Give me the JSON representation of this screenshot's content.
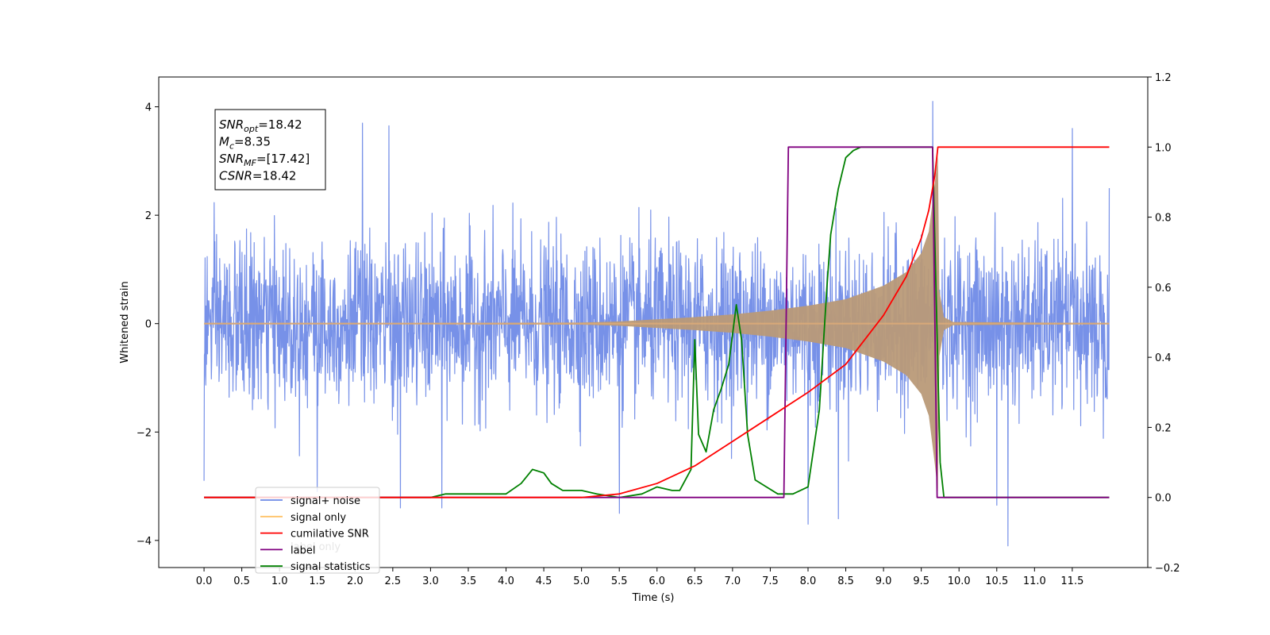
{
  "chart_data": {
    "type": "line",
    "xlabel": "Time (s)",
    "ylabel": "Whitened strain",
    "xlim": [
      -0.6,
      12.5
    ],
    "ylim": [
      -4.5,
      4.55
    ],
    "y2lim": [
      -0.2,
      1.2
    ],
    "x_ticks": [
      0.0,
      0.5,
      1.0,
      1.5,
      2.0,
      2.5,
      3.0,
      3.5,
      4.0,
      4.5,
      5.0,
      5.5,
      6.0,
      6.5,
      7.0,
      7.5,
      8.0,
      8.5,
      9.0,
      9.5,
      10.0,
      10.5,
      11.0,
      11.5
    ],
    "x_tick_labels": [
      "0.0",
      "0.5",
      "1.0",
      "1.5",
      "2.0",
      "2.5",
      "3.0",
      "3.5",
      "4.0",
      "4.5",
      "5.0",
      "5.5",
      "6.0",
      "6.5",
      "7.0",
      "7.5",
      "8.0",
      "8.5",
      "9.0",
      "9.5",
      "10.0",
      "10.5",
      "11.0",
      "11.5"
    ],
    "y_ticks": [
      4,
      2,
      0,
      -2,
      -4
    ],
    "y_tick_labels": [
      "4",
      "2",
      "0",
      "−2",
      "−4"
    ],
    "y2_ticks": [
      1.2,
      1.0,
      0.8,
      0.6,
      0.4,
      0.2,
      0.0,
      -0.2
    ],
    "y2_tick_labels": [
      "1.2",
      "1.0",
      "0.8",
      "0.6",
      "0.4",
      "0.2",
      "0.0",
      "−0.2"
    ],
    "grid": false,
    "legend": {
      "placement": "lower-left",
      "entries": [
        {
          "label": "signal+ noise",
          "color": "#6b88e6"
        },
        {
          "label": "signal only",
          "color": "#ffc266"
        },
        {
          "label": "cumilative SNR",
          "color": "#ff0000"
        },
        {
          "label": "label",
          "color": "#800080"
        },
        {
          "label": "signal statistics",
          "color": "#008000"
        }
      ],
      "ghost_text": "label only"
    },
    "annotation": {
      "lines": [
        {
          "name": "SNR",
          "sub": "opt",
          "value": "=18.42"
        },
        {
          "name": "M",
          "sub": "c",
          "value": "=8.35"
        },
        {
          "name": "SNR",
          "sub": "MF",
          "value": "=[17.42]"
        },
        {
          "name": "CSNR",
          "sub": "",
          "value": "=18.42"
        }
      ]
    },
    "noise": {
      "axis": "left",
      "x_start": 0.0,
      "x_end": 11.99,
      "typical_peak": 2.1,
      "notable_peaks": [
        {
          "x": 0.0,
          "y": -2.9
        },
        {
          "x": 1.5,
          "y": -3.1
        },
        {
          "x": 2.1,
          "y": 3.7
        },
        {
          "x": 2.45,
          "y": 3.65
        },
        {
          "x": 2.6,
          "y": -3.4
        },
        {
          "x": 3.15,
          "y": -3.4
        },
        {
          "x": 5.5,
          "y": -3.5
        },
        {
          "x": 8.0,
          "y": -3.7
        },
        {
          "x": 8.4,
          "y": -3.6
        },
        {
          "x": 9.65,
          "y": 4.1
        },
        {
          "x": 10.5,
          "y": -3.35
        },
        {
          "x": 10.65,
          "y": -4.1
        },
        {
          "x": 11.5,
          "y": 3.6
        },
        {
          "x": 11.99,
          "y": 2.5
        }
      ],
      "color": "#6b88e6"
    },
    "series": [
      {
        "name": "signal only",
        "axis": "left",
        "kind": "chirp-envelope",
        "color": "#ffc266",
        "envelope": {
          "x": [
            0.0,
            5.0,
            5.5,
            6.0,
            6.5,
            7.0,
            7.5,
            8.0,
            8.5,
            9.0,
            9.3,
            9.5,
            9.6,
            9.68,
            9.72
          ],
          "y": [
            0.0,
            0.02,
            0.04,
            0.08,
            0.12,
            0.17,
            0.24,
            0.33,
            0.45,
            0.7,
            0.95,
            1.3,
            1.7,
            2.6,
            3.1
          ]
        },
        "merger_x": 9.72
      },
      {
        "name": "cumilative SNR",
        "axis": "right",
        "color": "#ff0000",
        "x": [
          0.0,
          4.5,
          5.0,
          5.5,
          6.0,
          6.5,
          7.0,
          7.5,
          8.0,
          8.5,
          9.0,
          9.3,
          9.5,
          9.6,
          9.68,
          9.72,
          11.99
        ],
        "y": [
          0.0,
          0.0,
          0.0,
          0.01,
          0.04,
          0.09,
          0.16,
          0.23,
          0.3,
          0.38,
          0.52,
          0.63,
          0.74,
          0.82,
          0.92,
          1.0,
          1.0
        ]
      },
      {
        "name": "label",
        "axis": "right",
        "color": "#800080",
        "x": [
          0.0,
          7.68,
          7.74,
          9.65,
          9.71,
          11.99
        ],
        "y": [
          0.0,
          0.0,
          1.0,
          1.0,
          0.0,
          0.0
        ]
      },
      {
        "name": "signal statistics",
        "axis": "right",
        "color": "#008000",
        "x": [
          0.0,
          3.0,
          3.2,
          3.4,
          3.6,
          3.8,
          4.0,
          4.2,
          4.35,
          4.5,
          4.6,
          4.75,
          5.0,
          5.2,
          5.5,
          5.8,
          6.0,
          6.2,
          6.3,
          6.45,
          6.5,
          6.55,
          6.65,
          6.75,
          6.85,
          6.95,
          7.05,
          7.12,
          7.2,
          7.3,
          7.45,
          7.6,
          7.8,
          8.0,
          8.15,
          8.25,
          8.3,
          8.4,
          8.5,
          8.6,
          8.7,
          8.9,
          9.2,
          9.65,
          9.7,
          9.75,
          9.8,
          11.99
        ],
        "y": [
          0.0,
          0.0,
          0.01,
          0.01,
          0.01,
          0.01,
          0.01,
          0.04,
          0.08,
          0.07,
          0.04,
          0.02,
          0.02,
          0.01,
          0.0,
          0.01,
          0.03,
          0.02,
          0.02,
          0.08,
          0.45,
          0.18,
          0.13,
          0.25,
          0.31,
          0.38,
          0.55,
          0.45,
          0.18,
          0.05,
          0.03,
          0.01,
          0.01,
          0.03,
          0.25,
          0.6,
          0.75,
          0.88,
          0.97,
          0.99,
          1.0,
          1.0,
          1.0,
          1.0,
          0.55,
          0.1,
          0.0,
          0.0
        ]
      }
    ]
  }
}
